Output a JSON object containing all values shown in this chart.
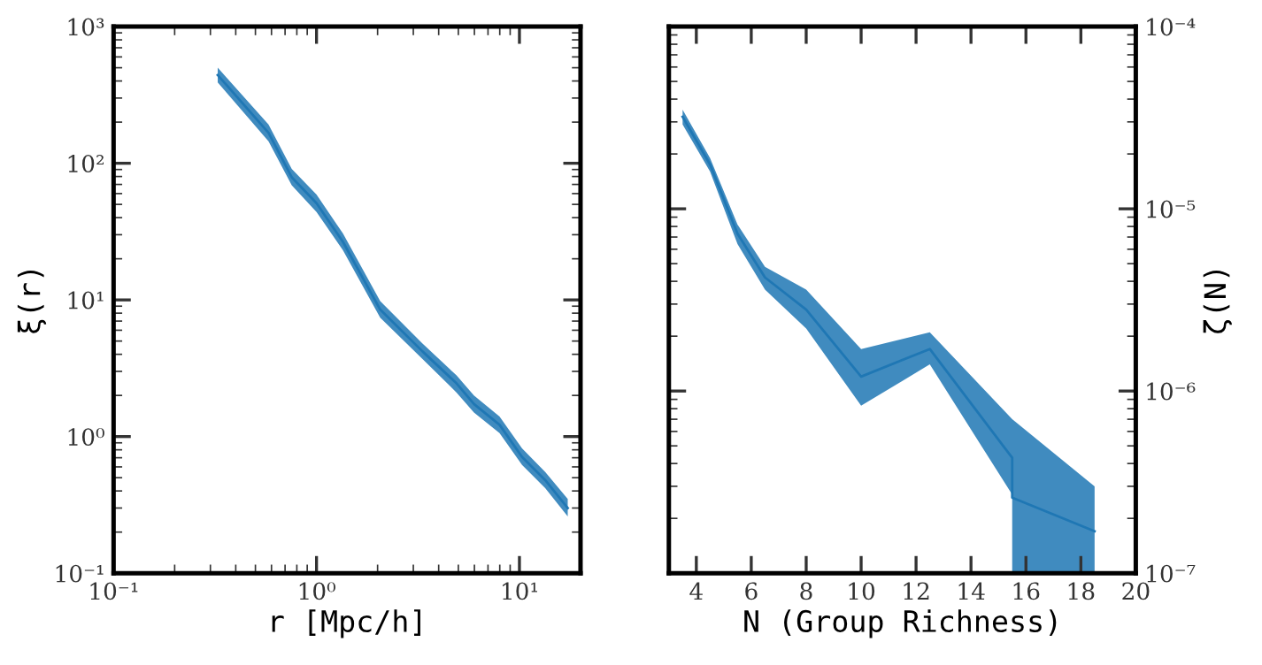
{
  "chart_data": [
    {
      "type": "line",
      "xlabel": "r [Mpc/h]",
      "ylabel": "ξ(r)",
      "log": "xy",
      "grid": false,
      "xlim": [
        0.1,
        20
      ],
      "ylim": [
        0.1,
        1000
      ],
      "xticks": [
        {
          "value": 0.1,
          "label": "10⁻¹"
        },
        {
          "value": 1,
          "label": "10⁰"
        },
        {
          "value": 10,
          "label": "10¹"
        }
      ],
      "yticks": [
        {
          "value": 0.1,
          "label": "10⁻¹"
        },
        {
          "value": 1,
          "label": "10⁰"
        },
        {
          "value": 10,
          "label": "10¹"
        },
        {
          "value": 100,
          "label": "10²"
        },
        {
          "value": 1000,
          "label": "10³"
        }
      ],
      "series": [
        {
          "color": "#1f77b4",
          "x": [
            0.326,
            0.58,
            0.755,
            1.0,
            1.35,
            2.06,
            3.33,
            4.9,
            5.97,
            7.98,
            10.3,
            13.4,
            17.3
          ],
          "values": [
            442,
            167,
            79,
            51,
            26.6,
            8.5,
            4.2,
            2.45,
            1.73,
            1.22,
            0.71,
            0.48,
            0.3
          ],
          "upper": [
            500,
            192,
            91,
            59,
            30.6,
            9.8,
            4.8,
            2.8,
            2.0,
            1.4,
            0.82,
            0.55,
            0.35
          ],
          "lower": [
            390,
            145,
            69,
            44,
            23.1,
            7.4,
            3.7,
            2.1,
            1.5,
            1.06,
            0.62,
            0.42,
            0.26
          ]
        }
      ]
    },
    {
      "type": "line",
      "xlabel": "N (Group Richness)",
      "ylabel": "ζ(N)",
      "log": "y",
      "grid": false,
      "xlim": [
        3,
        20
      ],
      "ylim": [
        1e-07,
        0.0001
      ],
      "xticks": [
        4,
        6,
        8,
        10,
        12,
        14,
        16,
        18,
        20
      ],
      "yticks": [
        {
          "value": 1e-07,
          "label": "10⁻⁷"
        },
        {
          "value": 1e-06,
          "label": "10⁻⁶"
        },
        {
          "value": 1e-05,
          "label": "10⁻⁵"
        },
        {
          "value": 0.0001,
          "label": "10⁻⁴"
        }
      ],
      "series": [
        {
          "color": "#1f77b4",
          "x": [
            3.5,
            4.5,
            5.5,
            6.5,
            8,
            10,
            12.5,
            15.5,
            15.5,
            18.5
          ],
          "values": [
            3.2e-05,
            1.75e-05,
            7.3e-06,
            4.2e-06,
            2.8e-06,
            1.2e-06,
            1.7e-06,
            4.3e-07,
            2.6e-07,
            1.7e-07
          ],
          "upper": [
            3.5e-05,
            1.9e-05,
            8.2e-06,
            4.8e-06,
            3.6e-06,
            1.7e-06,
            2.1e-06,
            7e-07,
            7e-07,
            3e-07
          ],
          "lower": [
            2.9e-05,
            1.6e-05,
            6.4e-06,
            3.6e-06,
            2.2e-06,
            8.3e-07,
            1.4e-06,
            2.7e-07,
            1e-07,
            1e-07
          ]
        }
      ]
    }
  ]
}
